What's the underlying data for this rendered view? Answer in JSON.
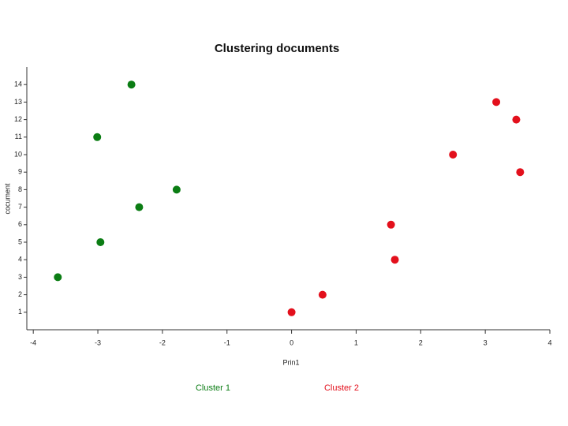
{
  "chart_data": {
    "type": "scatter",
    "title": "Clustering documents",
    "x_label": "Prin1",
    "y_label": "cocument",
    "series": [
      {
        "name": "Cluster 1",
        "color": "#0b7d14",
        "x": [
          -2.48,
          -3.01,
          -1.78,
          -2.36,
          -2.96,
          -3.62
        ],
        "values": [
          14,
          11,
          8,
          7,
          5,
          3
        ]
      },
      {
        "name": "Cluster 2",
        "color": "#e3101c",
        "x": [
          0,
          0.48,
          1.54,
          1.6,
          2.5,
          3.17,
          3.48,
          3.54
        ],
        "values": [
          1,
          2,
          6,
          4,
          10,
          13,
          12,
          9
        ]
      }
    ],
    "xlim": [
      -4.1,
      4
    ],
    "xticks": [
      -4,
      -3,
      -2,
      -1,
      0,
      1,
      2,
      3,
      4
    ],
    "ylim": [
      0,
      15
    ],
    "yticks": [
      1,
      2,
      3,
      4,
      5,
      6,
      7,
      8,
      9,
      10,
      11,
      12,
      13,
      14
    ],
    "legend": "bottom"
  }
}
